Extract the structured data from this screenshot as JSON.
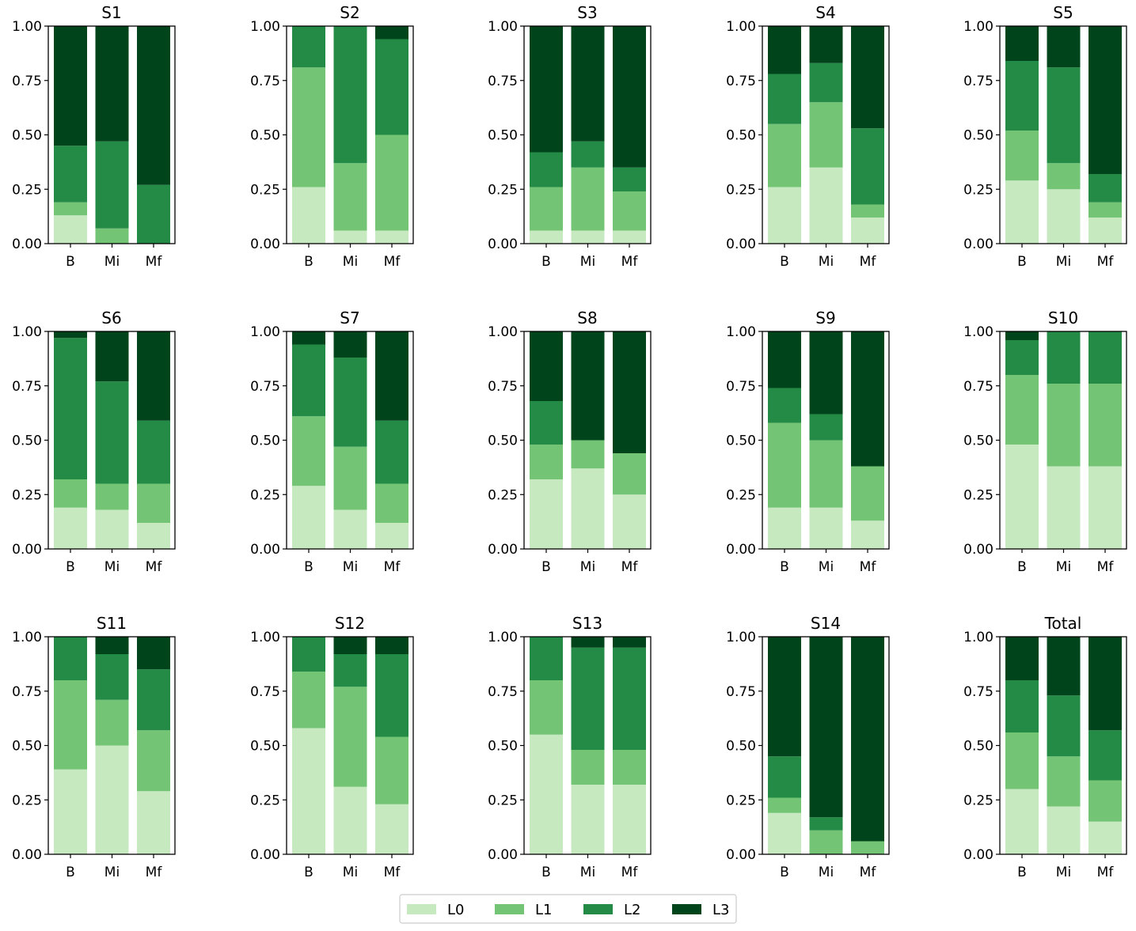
{
  "chart_data": {
    "type": "bar",
    "stacked": true,
    "categories": [
      "B",
      "Mi",
      "Mf"
    ],
    "yticks": [
      "0.00",
      "0.25",
      "0.50",
      "0.75",
      "1.00"
    ],
    "ylim": [
      0,
      1
    ],
    "legend": {
      "placement": "bottom-center",
      "entries": [
        {
          "name": "L0",
          "color": "#c7e9c0"
        },
        {
          "name": "L1",
          "color": "#74c476"
        },
        {
          "name": "L2",
          "color": "#238b45"
        },
        {
          "name": "L3",
          "color": "#00441b"
        }
      ]
    },
    "panels": [
      {
        "title": "S1",
        "values": [
          [
            0.13,
            0.06,
            0.26,
            0.55
          ],
          [
            0.0,
            0.07,
            0.4,
            0.53
          ],
          [
            0.0,
            0.0,
            0.27,
            0.73
          ]
        ]
      },
      {
        "title": "S2",
        "values": [
          [
            0.26,
            0.55,
            0.19,
            0.0
          ],
          [
            0.06,
            0.31,
            0.63,
            0.0
          ],
          [
            0.06,
            0.44,
            0.44,
            0.06
          ]
        ]
      },
      {
        "title": "S3",
        "values": [
          [
            0.06,
            0.2,
            0.16,
            0.58
          ],
          [
            0.06,
            0.29,
            0.12,
            0.53
          ],
          [
            0.06,
            0.18,
            0.11,
            0.65
          ]
        ]
      },
      {
        "title": "S4",
        "values": [
          [
            0.26,
            0.29,
            0.23,
            0.22
          ],
          [
            0.35,
            0.3,
            0.18,
            0.17
          ],
          [
            0.12,
            0.06,
            0.35,
            0.47
          ]
        ]
      },
      {
        "title": "S5",
        "values": [
          [
            0.29,
            0.23,
            0.32,
            0.16
          ],
          [
            0.25,
            0.12,
            0.44,
            0.19
          ],
          [
            0.12,
            0.07,
            0.13,
            0.68
          ]
        ]
      },
      {
        "title": "S6",
        "values": [
          [
            0.19,
            0.13,
            0.65,
            0.03
          ],
          [
            0.18,
            0.12,
            0.47,
            0.23
          ],
          [
            0.12,
            0.18,
            0.29,
            0.41
          ]
        ]
      },
      {
        "title": "S7",
        "values": [
          [
            0.29,
            0.32,
            0.33,
            0.06
          ],
          [
            0.18,
            0.29,
            0.41,
            0.12
          ],
          [
            0.12,
            0.18,
            0.29,
            0.41
          ]
        ]
      },
      {
        "title": "S8",
        "values": [
          [
            0.32,
            0.16,
            0.2,
            0.32
          ],
          [
            0.37,
            0.13,
            0.0,
            0.5
          ],
          [
            0.25,
            0.19,
            0.0,
            0.56
          ]
        ]
      },
      {
        "title": "S9",
        "values": [
          [
            0.19,
            0.39,
            0.16,
            0.26
          ],
          [
            0.19,
            0.31,
            0.12,
            0.38
          ],
          [
            0.13,
            0.25,
            0.0,
            0.62
          ]
        ]
      },
      {
        "title": "S10",
        "values": [
          [
            0.48,
            0.32,
            0.16,
            0.04
          ],
          [
            0.38,
            0.38,
            0.24,
            0.0
          ],
          [
            0.38,
            0.38,
            0.24,
            0.0
          ]
        ]
      },
      {
        "title": "S11",
        "values": [
          [
            0.39,
            0.41,
            0.2,
            0.0
          ],
          [
            0.5,
            0.21,
            0.21,
            0.08
          ],
          [
            0.29,
            0.28,
            0.28,
            0.15
          ]
        ]
      },
      {
        "title": "S12",
        "values": [
          [
            0.58,
            0.26,
            0.16,
            0.0
          ],
          [
            0.31,
            0.46,
            0.15,
            0.08
          ],
          [
            0.23,
            0.31,
            0.38,
            0.08
          ]
        ]
      },
      {
        "title": "S13",
        "values": [
          [
            0.55,
            0.25,
            0.2,
            0.0
          ],
          [
            0.32,
            0.16,
            0.47,
            0.05
          ],
          [
            0.32,
            0.16,
            0.47,
            0.05
          ]
        ]
      },
      {
        "title": "S14",
        "values": [
          [
            0.19,
            0.07,
            0.19,
            0.55
          ],
          [
            0.0,
            0.11,
            0.06,
            0.83
          ],
          [
            0.0,
            0.06,
            0.0,
            0.94
          ]
        ]
      },
      {
        "title": "Total",
        "values": [
          [
            0.3,
            0.26,
            0.24,
            0.2
          ],
          [
            0.22,
            0.23,
            0.28,
            0.27
          ],
          [
            0.15,
            0.19,
            0.23,
            0.43
          ]
        ]
      }
    ]
  }
}
